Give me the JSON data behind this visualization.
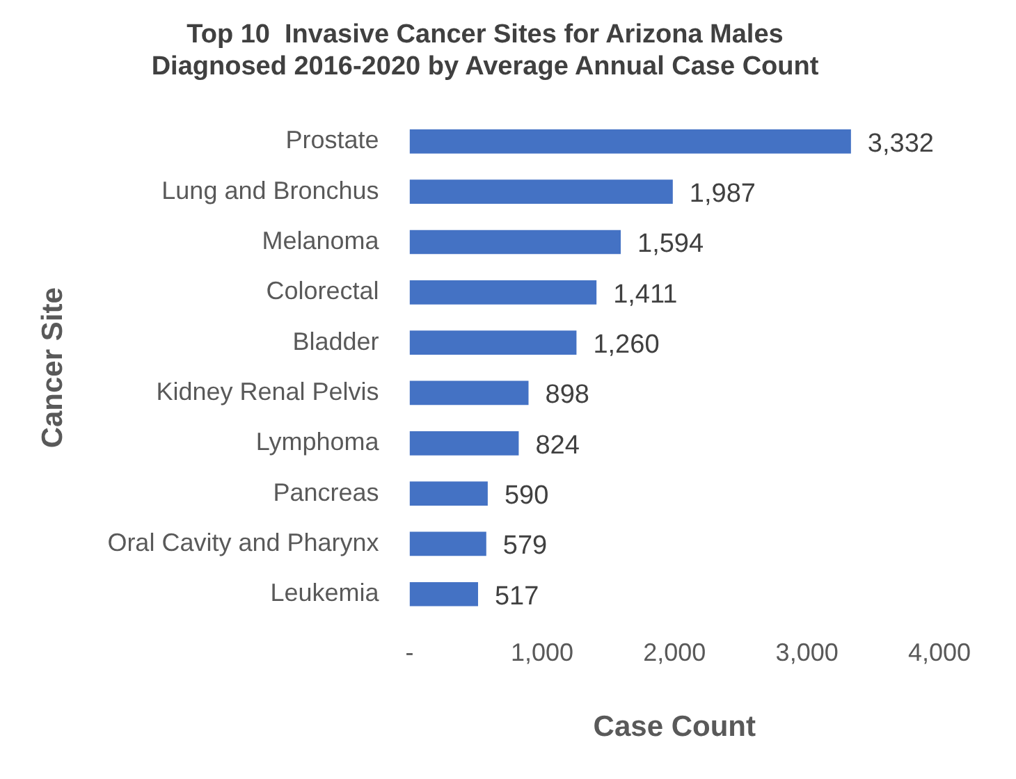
{
  "chart_data": {
    "type": "bar",
    "orientation": "horizontal",
    "title": "Top 10  Invasive Cancer Sites for Arizona Males\nDiagnosed 2016-2020 by Average Annual Case Count",
    "xlabel": "Case Count",
    "ylabel": "Cancer Site",
    "categories": [
      "Prostate",
      "Lung and Bronchus",
      "Melanoma",
      "Colorectal",
      "Bladder",
      "Kidney Renal Pelvis",
      "Lymphoma",
      "Pancreas",
      "Oral Cavity and Pharynx",
      "Leukemia"
    ],
    "values": [
      3332,
      1987,
      1594,
      1411,
      1260,
      898,
      824,
      590,
      579,
      517
    ],
    "value_labels": [
      "3,332",
      "1,987",
      "1,594",
      "1,411",
      "1,260",
      "898",
      "824",
      "590",
      "579",
      "517"
    ],
    "color": "#4472c4",
    "xlim": [
      0,
      4000
    ],
    "xticks": [
      {
        "value": 0,
        "label": "-"
      },
      {
        "value": 1000,
        "label": "1,000"
      },
      {
        "value": 2000,
        "label": "2,000"
      },
      {
        "value": 3000,
        "label": "3,000"
      },
      {
        "value": 4000,
        "label": "4,000"
      }
    ],
    "grid": false,
    "legend": false
  }
}
